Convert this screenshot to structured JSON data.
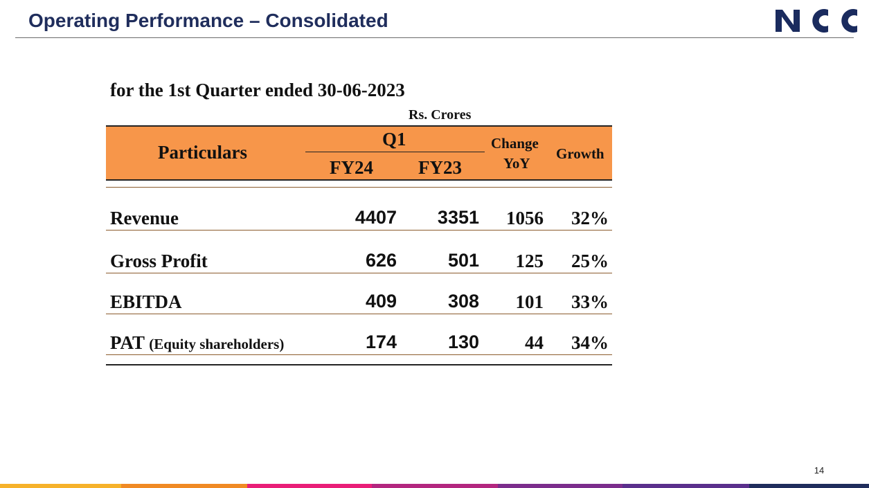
{
  "header": {
    "title": "Operating Performance – Consolidated",
    "logo_text": "NCC"
  },
  "report": {
    "subtitle": "for the 1st Quarter ended 30-06-2023",
    "unit": "Rs. Crores"
  },
  "table": {
    "headers": {
      "particulars": "Particulars",
      "period_group": "Q1",
      "fy24": "FY24",
      "fy23": "FY23",
      "change_line1": "Change",
      "change_line2": "YoY",
      "growth": "Growth"
    },
    "rows": [
      {
        "label": "Revenue",
        "label_note": "",
        "fy24": "4407",
        "fy23": "3351",
        "change": "1056",
        "growth": "32%"
      },
      {
        "label": "Gross Profit",
        "label_note": "",
        "fy24": "626",
        "fy23": "501",
        "change": "125",
        "growth": "25%"
      },
      {
        "label": "EBITDA",
        "label_note": "",
        "fy24": "409",
        "fy23": "308",
        "change": "101",
        "growth": "33%"
      },
      {
        "label": "PAT",
        "label_note": "(Equity shareholders)",
        "fy24": "174",
        "fy23": "130",
        "change": "44",
        "growth": "34%"
      }
    ]
  },
  "footer": {
    "page_number": "14"
  },
  "colors": {
    "title": "#1f2d5c",
    "header_band": "#f7964a",
    "logo": "#1a2b5e",
    "footer_strip": [
      "#f6b22a",
      "#f08a24",
      "#e91e78",
      "#b3267f",
      "#7b2d8c",
      "#5a2f8c",
      "#1f2d5c"
    ]
  }
}
